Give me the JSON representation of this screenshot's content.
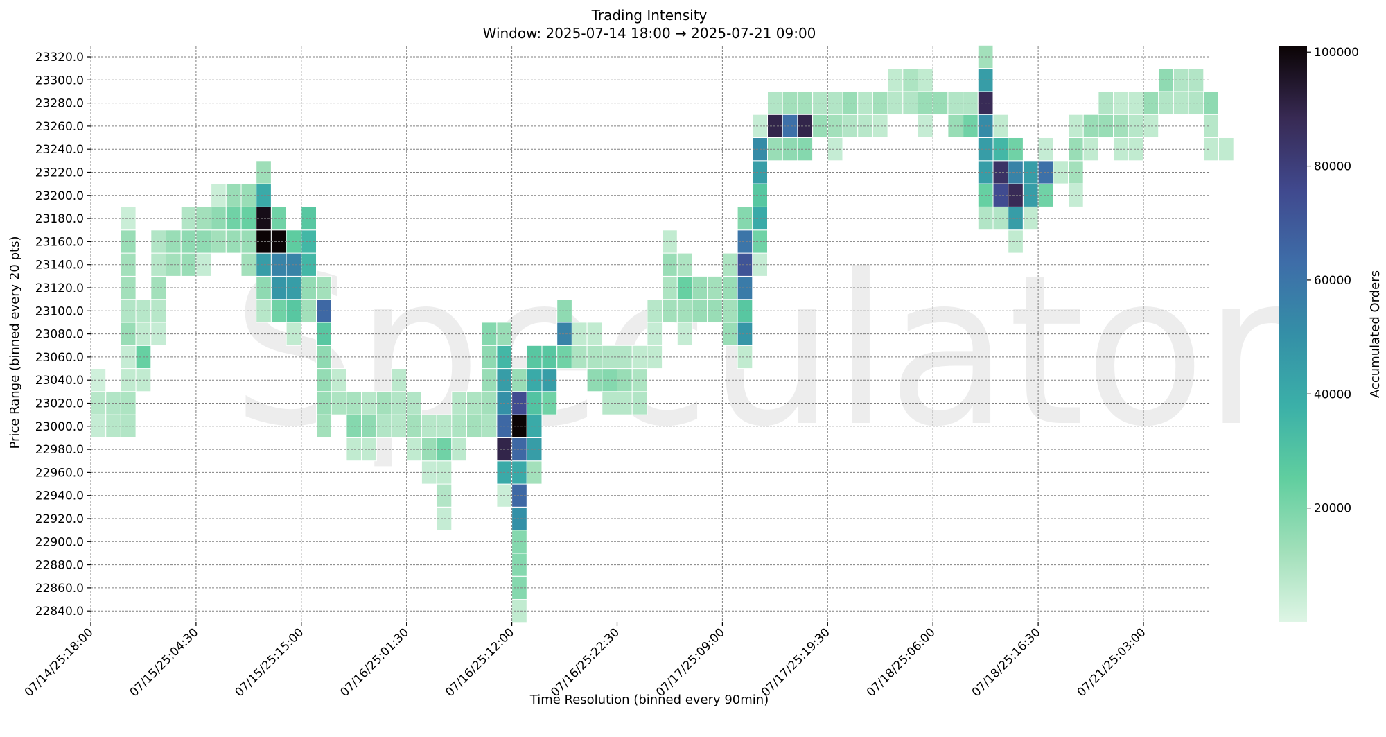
{
  "chart_data": {
    "type": "heatmap",
    "title": "Trading Intensity",
    "subtitle": "Window: 2025-07-14 18:00 → 2025-07-21 09:00",
    "xlabel": "Time Resolution (binned every 90min)",
    "ylabel": "Price Range (binned every 20 pts)",
    "colorbar_label": "Accumulated Orders",
    "watermark": "Speculator",
    "x_tick_labels": [
      "07/14/25:18:00",
      "07/15/25:04:30",
      "07/15/25:15:00",
      "07/16/25:01:30",
      "07/16/25:12:00",
      "07/16/25:22:30",
      "07/17/25:09:00",
      "07/17/25:19:30",
      "07/18/25:06:00",
      "07/18/25:16:30",
      "07/21/25:03:00"
    ],
    "y_tick_labels": [
      "23320.0",
      "23300.0",
      "23280.0",
      "23260.0",
      "23240.0",
      "23220.0",
      "23200.0",
      "23180.0",
      "23160.0",
      "23140.0",
      "23120.0",
      "23100.0",
      "23080.0",
      "23060.0",
      "23040.0",
      "23020.0",
      "23000.0",
      "22980.0",
      "22960.0",
      "22940.0",
      "22920.0",
      "22900.0",
      "22880.0",
      "22860.0",
      "22840.0"
    ],
    "colorbar_ticks": [
      "20000",
      "40000",
      "60000",
      "80000",
      "100000"
    ],
    "value_range": [
      0,
      101000
    ],
    "price_range": [
      22840,
      23320
    ],
    "time_bins": 76,
    "colormap": [
      "#def5e5",
      "#a0dfb9",
      "#60ce9f",
      "#3bb0a8",
      "#348fa7",
      "#3e6da8",
      "#40498e",
      "#382a54",
      "#0b0405"
    ],
    "grid": true,
    "legend": "colorbar-right",
    "cells": [
      [
        0,
        23000,
        5000
      ],
      [
        0,
        23020,
        8000
      ],
      [
        0,
        23040,
        3000
      ],
      [
        1,
        23000,
        8000
      ],
      [
        1,
        23020,
        9000
      ],
      [
        2,
        23000,
        9000
      ],
      [
        2,
        23020,
        10000
      ],
      [
        2,
        23040,
        6000
      ],
      [
        2,
        23060,
        5000
      ],
      [
        2,
        23080,
        14000
      ],
      [
        2,
        23100,
        9000
      ],
      [
        2,
        23120,
        12000
      ],
      [
        2,
        23140,
        12000
      ],
      [
        2,
        23160,
        14000
      ],
      [
        2,
        23180,
        4000
      ],
      [
        3,
        23040,
        6000
      ],
      [
        3,
        23060,
        24000
      ],
      [
        3,
        23080,
        6000
      ],
      [
        3,
        23100,
        8000
      ],
      [
        4,
        23080,
        5000
      ],
      [
        4,
        23100,
        8000
      ],
      [
        4,
        23120,
        12000
      ],
      [
        4,
        23140,
        8000
      ],
      [
        4,
        23160,
        9000
      ],
      [
        5,
        23140,
        12000
      ],
      [
        5,
        23160,
        14000
      ],
      [
        6,
        23140,
        14000
      ],
      [
        6,
        23160,
        16000
      ],
      [
        6,
        23180,
        9000
      ],
      [
        7,
        23140,
        5000
      ],
      [
        7,
        23160,
        16000
      ],
      [
        7,
        23180,
        12000
      ],
      [
        8,
        23160,
        12000
      ],
      [
        8,
        23180,
        16000
      ],
      [
        8,
        23200,
        4000
      ],
      [
        9,
        23160,
        14000
      ],
      [
        9,
        23180,
        22000
      ],
      [
        9,
        23200,
        14000
      ],
      [
        10,
        23140,
        12000
      ],
      [
        10,
        23160,
        14000
      ],
      [
        10,
        23180,
        24000
      ],
      [
        10,
        23200,
        14000
      ],
      [
        11,
        23100,
        8000
      ],
      [
        11,
        23120,
        16000
      ],
      [
        11,
        23140,
        45000
      ],
      [
        11,
        23160,
        101000
      ],
      [
        11,
        23180,
        98000
      ],
      [
        11,
        23200,
        40000
      ],
      [
        11,
        23220,
        13000
      ],
      [
        12,
        23100,
        22000
      ],
      [
        12,
        23120,
        48000
      ],
      [
        12,
        23140,
        55000
      ],
      [
        12,
        23160,
        101000
      ],
      [
        12,
        23180,
        22000
      ],
      [
        13,
        23080,
        6000
      ],
      [
        13,
        23100,
        28000
      ],
      [
        13,
        23120,
        45000
      ],
      [
        13,
        23140,
        55000
      ],
      [
        13,
        23160,
        26000
      ],
      [
        14,
        23100,
        12000
      ],
      [
        14,
        23120,
        15000
      ],
      [
        14,
        23140,
        35000
      ],
      [
        14,
        23160,
        35000
      ],
      [
        14,
        23180,
        28000
      ],
      [
        15,
        23000,
        12000
      ],
      [
        15,
        23020,
        14000
      ],
      [
        15,
        23040,
        15000
      ],
      [
        15,
        23060,
        16000
      ],
      [
        15,
        23080,
        28000
      ],
      [
        15,
        23100,
        65000
      ],
      [
        15,
        23120,
        12000
      ],
      [
        16,
        23020,
        10000
      ],
      [
        16,
        23040,
        6000
      ],
      [
        17,
        22980,
        6000
      ],
      [
        17,
        23000,
        18000
      ],
      [
        17,
        23020,
        11000
      ],
      [
        18,
        22980,
        6000
      ],
      [
        18,
        23000,
        16000
      ],
      [
        18,
        23020,
        8000
      ],
      [
        19,
        23000,
        9000
      ],
      [
        19,
        23020,
        12000
      ],
      [
        20,
        23000,
        8000
      ],
      [
        20,
        23020,
        9000
      ],
      [
        20,
        23040,
        7000
      ],
      [
        21,
        22980,
        6000
      ],
      [
        21,
        23000,
        12000
      ],
      [
        21,
        23020,
        9000
      ],
      [
        22,
        22960,
        5000
      ],
      [
        22,
        22980,
        14000
      ],
      [
        22,
        23000,
        8000
      ],
      [
        23,
        22920,
        5000
      ],
      [
        23,
        22940,
        9000
      ],
      [
        23,
        22960,
        6000
      ],
      [
        23,
        22980,
        22000
      ],
      [
        23,
        23000,
        8000
      ],
      [
        24,
        22980,
        7000
      ],
      [
        24,
        23000,
        10000
      ],
      [
        24,
        23020,
        8000
      ],
      [
        25,
        23000,
        12000
      ],
      [
        25,
        23020,
        10000
      ],
      [
        26,
        23000,
        10000
      ],
      [
        26,
        23020,
        12000
      ],
      [
        26,
        23040,
        14000
      ],
      [
        26,
        23060,
        16000
      ],
      [
        26,
        23080,
        18000
      ],
      [
        27,
        22940,
        4000
      ],
      [
        27,
        22960,
        40000
      ],
      [
        27,
        22980,
        90000
      ],
      [
        27,
        23000,
        65000
      ],
      [
        27,
        23020,
        50000
      ],
      [
        27,
        23040,
        45000
      ],
      [
        27,
        23060,
        35000
      ],
      [
        27,
        23080,
        14000
      ],
      [
        28,
        22840,
        6000
      ],
      [
        28,
        22860,
        18000
      ],
      [
        28,
        22880,
        18000
      ],
      [
        28,
        22900,
        18000
      ],
      [
        28,
        22920,
        50000
      ],
      [
        28,
        22940,
        65000
      ],
      [
        28,
        22960,
        40000
      ],
      [
        28,
        22980,
        65000
      ],
      [
        28,
        23000,
        101000
      ],
      [
        28,
        23020,
        75000
      ],
      [
        28,
        23040,
        14000
      ],
      [
        29,
        22960,
        12000
      ],
      [
        29,
        22980,
        45000
      ],
      [
        29,
        23000,
        40000
      ],
      [
        29,
        23020,
        30000
      ],
      [
        29,
        23040,
        40000
      ],
      [
        29,
        23060,
        28000
      ],
      [
        30,
        23020,
        22000
      ],
      [
        30,
        23040,
        45000
      ],
      [
        30,
        23060,
        28000
      ],
      [
        31,
        23060,
        22000
      ],
      [
        31,
        23080,
        55000
      ],
      [
        31,
        23100,
        16000
      ],
      [
        32,
        23060,
        10000
      ],
      [
        32,
        23080,
        6000
      ],
      [
        33,
        23040,
        16000
      ],
      [
        33,
        23060,
        10000
      ],
      [
        33,
        23080,
        6000
      ],
      [
        34,
        23020,
        8000
      ],
      [
        34,
        23040,
        18000
      ],
      [
        34,
        23060,
        9000
      ],
      [
        35,
        23020,
        8000
      ],
      [
        35,
        23040,
        14000
      ],
      [
        35,
        23060,
        9000
      ],
      [
        36,
        23020,
        9000
      ],
      [
        36,
        23040,
        10000
      ],
      [
        36,
        23060,
        6000
      ],
      [
        37,
        23060,
        6000
      ],
      [
        37,
        23080,
        5000
      ],
      [
        37,
        23100,
        8000
      ],
      [
        38,
        23100,
        12000
      ],
      [
        38,
        23120,
        10000
      ],
      [
        38,
        23140,
        14000
      ],
      [
        38,
        23160,
        6000
      ],
      [
        39,
        23080,
        5000
      ],
      [
        39,
        23100,
        12000
      ],
      [
        39,
        23120,
        24000
      ],
      [
        39,
        23140,
        10000
      ],
      [
        40,
        23100,
        14000
      ],
      [
        40,
        23120,
        14000
      ],
      [
        41,
        23100,
        14000
      ],
      [
        41,
        23120,
        12000
      ],
      [
        42,
        23080,
        14000
      ],
      [
        42,
        23100,
        12000
      ],
      [
        42,
        23120,
        14000
      ],
      [
        42,
        23140,
        10000
      ],
      [
        43,
        23060,
        6000
      ],
      [
        43,
        23080,
        48000
      ],
      [
        43,
        23100,
        28000
      ],
      [
        43,
        23120,
        58000
      ],
      [
        43,
        23140,
        72000
      ],
      [
        43,
        23160,
        60000
      ],
      [
        43,
        23180,
        18000
      ],
      [
        44,
        23140,
        5000
      ],
      [
        44,
        23160,
        22000
      ],
      [
        44,
        23180,
        40000
      ],
      [
        44,
        23200,
        28000
      ],
      [
        44,
        23220,
        45000
      ],
      [
        44,
        23240,
        52000
      ],
      [
        44,
        23260,
        5000
      ],
      [
        45,
        23240,
        14000
      ],
      [
        45,
        23260,
        90000
      ],
      [
        45,
        23280,
        9000
      ],
      [
        46,
        23240,
        16000
      ],
      [
        46,
        23260,
        62000
      ],
      [
        46,
        23280,
        12000
      ],
      [
        47,
        23240,
        18000
      ],
      [
        47,
        23260,
        90000
      ],
      [
        47,
        23280,
        12000
      ],
      [
        48,
        23260,
        14000
      ],
      [
        48,
        23280,
        9000
      ],
      [
        49,
        23240,
        5000
      ],
      [
        49,
        23260,
        12000
      ],
      [
        49,
        23280,
        9000
      ],
      [
        50,
        23260,
        9000
      ],
      [
        50,
        23280,
        14000
      ],
      [
        51,
        23260,
        8000
      ],
      [
        51,
        23280,
        8000
      ],
      [
        52,
        23260,
        6000
      ],
      [
        52,
        23280,
        12000
      ],
      [
        53,
        23280,
        8000
      ],
      [
        53,
        23300,
        6000
      ],
      [
        54,
        23280,
        9000
      ],
      [
        54,
        23300,
        10000
      ],
      [
        55,
        23260,
        5000
      ],
      [
        55,
        23280,
        14000
      ],
      [
        55,
        23300,
        6000
      ],
      [
        56,
        23280,
        14000
      ],
      [
        57,
        23260,
        14000
      ],
      [
        57,
        23280,
        9000
      ],
      [
        58,
        23260,
        22000
      ],
      [
        58,
        23280,
        9000
      ],
      [
        59,
        23180,
        9000
      ],
      [
        59,
        23200,
        24000
      ],
      [
        59,
        23220,
        45000
      ],
      [
        59,
        23240,
        45000
      ],
      [
        59,
        23260,
        52000
      ],
      [
        59,
        23280,
        88000
      ],
      [
        59,
        23300,
        45000
      ],
      [
        59,
        23320,
        12000
      ],
      [
        60,
        23180,
        9000
      ],
      [
        60,
        23200,
        75000
      ],
      [
        60,
        23220,
        85000
      ],
      [
        60,
        23240,
        35000
      ],
      [
        60,
        23260,
        6000
      ],
      [
        61,
        23160,
        6000
      ],
      [
        61,
        23180,
        45000
      ],
      [
        61,
        23200,
        88000
      ],
      [
        61,
        23220,
        55000
      ],
      [
        61,
        23240,
        22000
      ],
      [
        62,
        23180,
        6000
      ],
      [
        62,
        23200,
        45000
      ],
      [
        62,
        23220,
        45000
      ],
      [
        63,
        23200,
        22000
      ],
      [
        63,
        23220,
        62000
      ],
      [
        63,
        23240,
        5000
      ],
      [
        64,
        23220,
        6000
      ],
      [
        65,
        23200,
        5000
      ],
      [
        65,
        23220,
        12000
      ],
      [
        65,
        23240,
        14000
      ],
      [
        65,
        23260,
        6000
      ],
      [
        66,
        23240,
        6000
      ],
      [
        66,
        23260,
        14000
      ],
      [
        67,
        23260,
        14000
      ],
      [
        67,
        23280,
        9000
      ],
      [
        68,
        23240,
        6000
      ],
      [
        68,
        23260,
        12000
      ],
      [
        68,
        23280,
        6000
      ],
      [
        69,
        23240,
        6000
      ],
      [
        69,
        23260,
        8000
      ],
      [
        69,
        23280,
        6000
      ],
      [
        70,
        23260,
        6000
      ],
      [
        70,
        23280,
        14000
      ],
      [
        71,
        23280,
        9000
      ],
      [
        71,
        23300,
        16000
      ],
      [
        72,
        23280,
        8000
      ],
      [
        72,
        23300,
        9000
      ],
      [
        73,
        23280,
        9000
      ],
      [
        73,
        23300,
        9000
      ],
      [
        74,
        23240,
        6000
      ],
      [
        74,
        23260,
        8000
      ],
      [
        74,
        23280,
        16000
      ],
      [
        75,
        23240,
        6000
      ]
    ]
  }
}
